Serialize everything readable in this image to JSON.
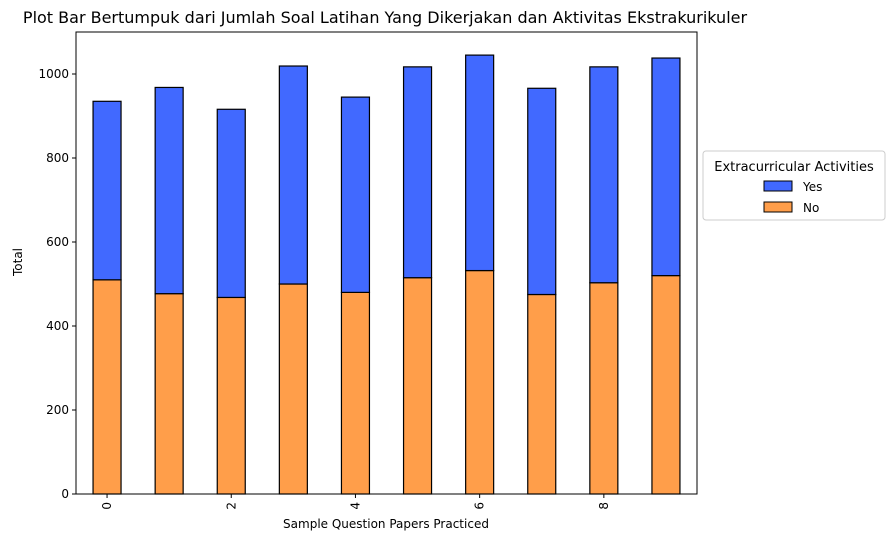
{
  "chart_data": {
    "type": "bar",
    "stacked": true,
    "title": "Plot Bar Bertumpuk dari Jumlah Soal Latihan Yang Dikerjakan dan Aktivitas Ekstrakurikuler",
    "xlabel": "Sample Question Papers Practiced",
    "ylabel": "Total",
    "x": [
      0,
      1,
      2,
      3,
      4,
      5,
      6,
      7,
      8,
      9
    ],
    "xticks": [
      "0",
      "2",
      "4",
      "6",
      "8"
    ],
    "xtick_values": [
      0,
      2,
      4,
      6,
      8
    ],
    "xtick_rotation": 90,
    "yticks": [
      "0",
      "200",
      "400",
      "600",
      "800",
      "1000"
    ],
    "ytick_values": [
      0,
      200,
      400,
      600,
      800,
      1000
    ],
    "xlim": [
      -0.5,
      9.5
    ],
    "ylim": [
      0,
      1100
    ],
    "grid": false,
    "series": [
      {
        "name": "No",
        "color": "#ff9e4a",
        "values": [
          510,
          477,
          468,
          500,
          480,
          515,
          532,
          475,
          503,
          520
        ]
      },
      {
        "name": "Yes",
        "color": "#4169ff",
        "values": [
          425,
          491,
          448,
          519,
          465,
          502,
          513,
          491,
          514,
          518
        ]
      }
    ],
    "legend": {
      "title": "Extracurricular Activities",
      "placement": "right, outside",
      "entries": [
        "Yes",
        "No"
      ]
    }
  }
}
